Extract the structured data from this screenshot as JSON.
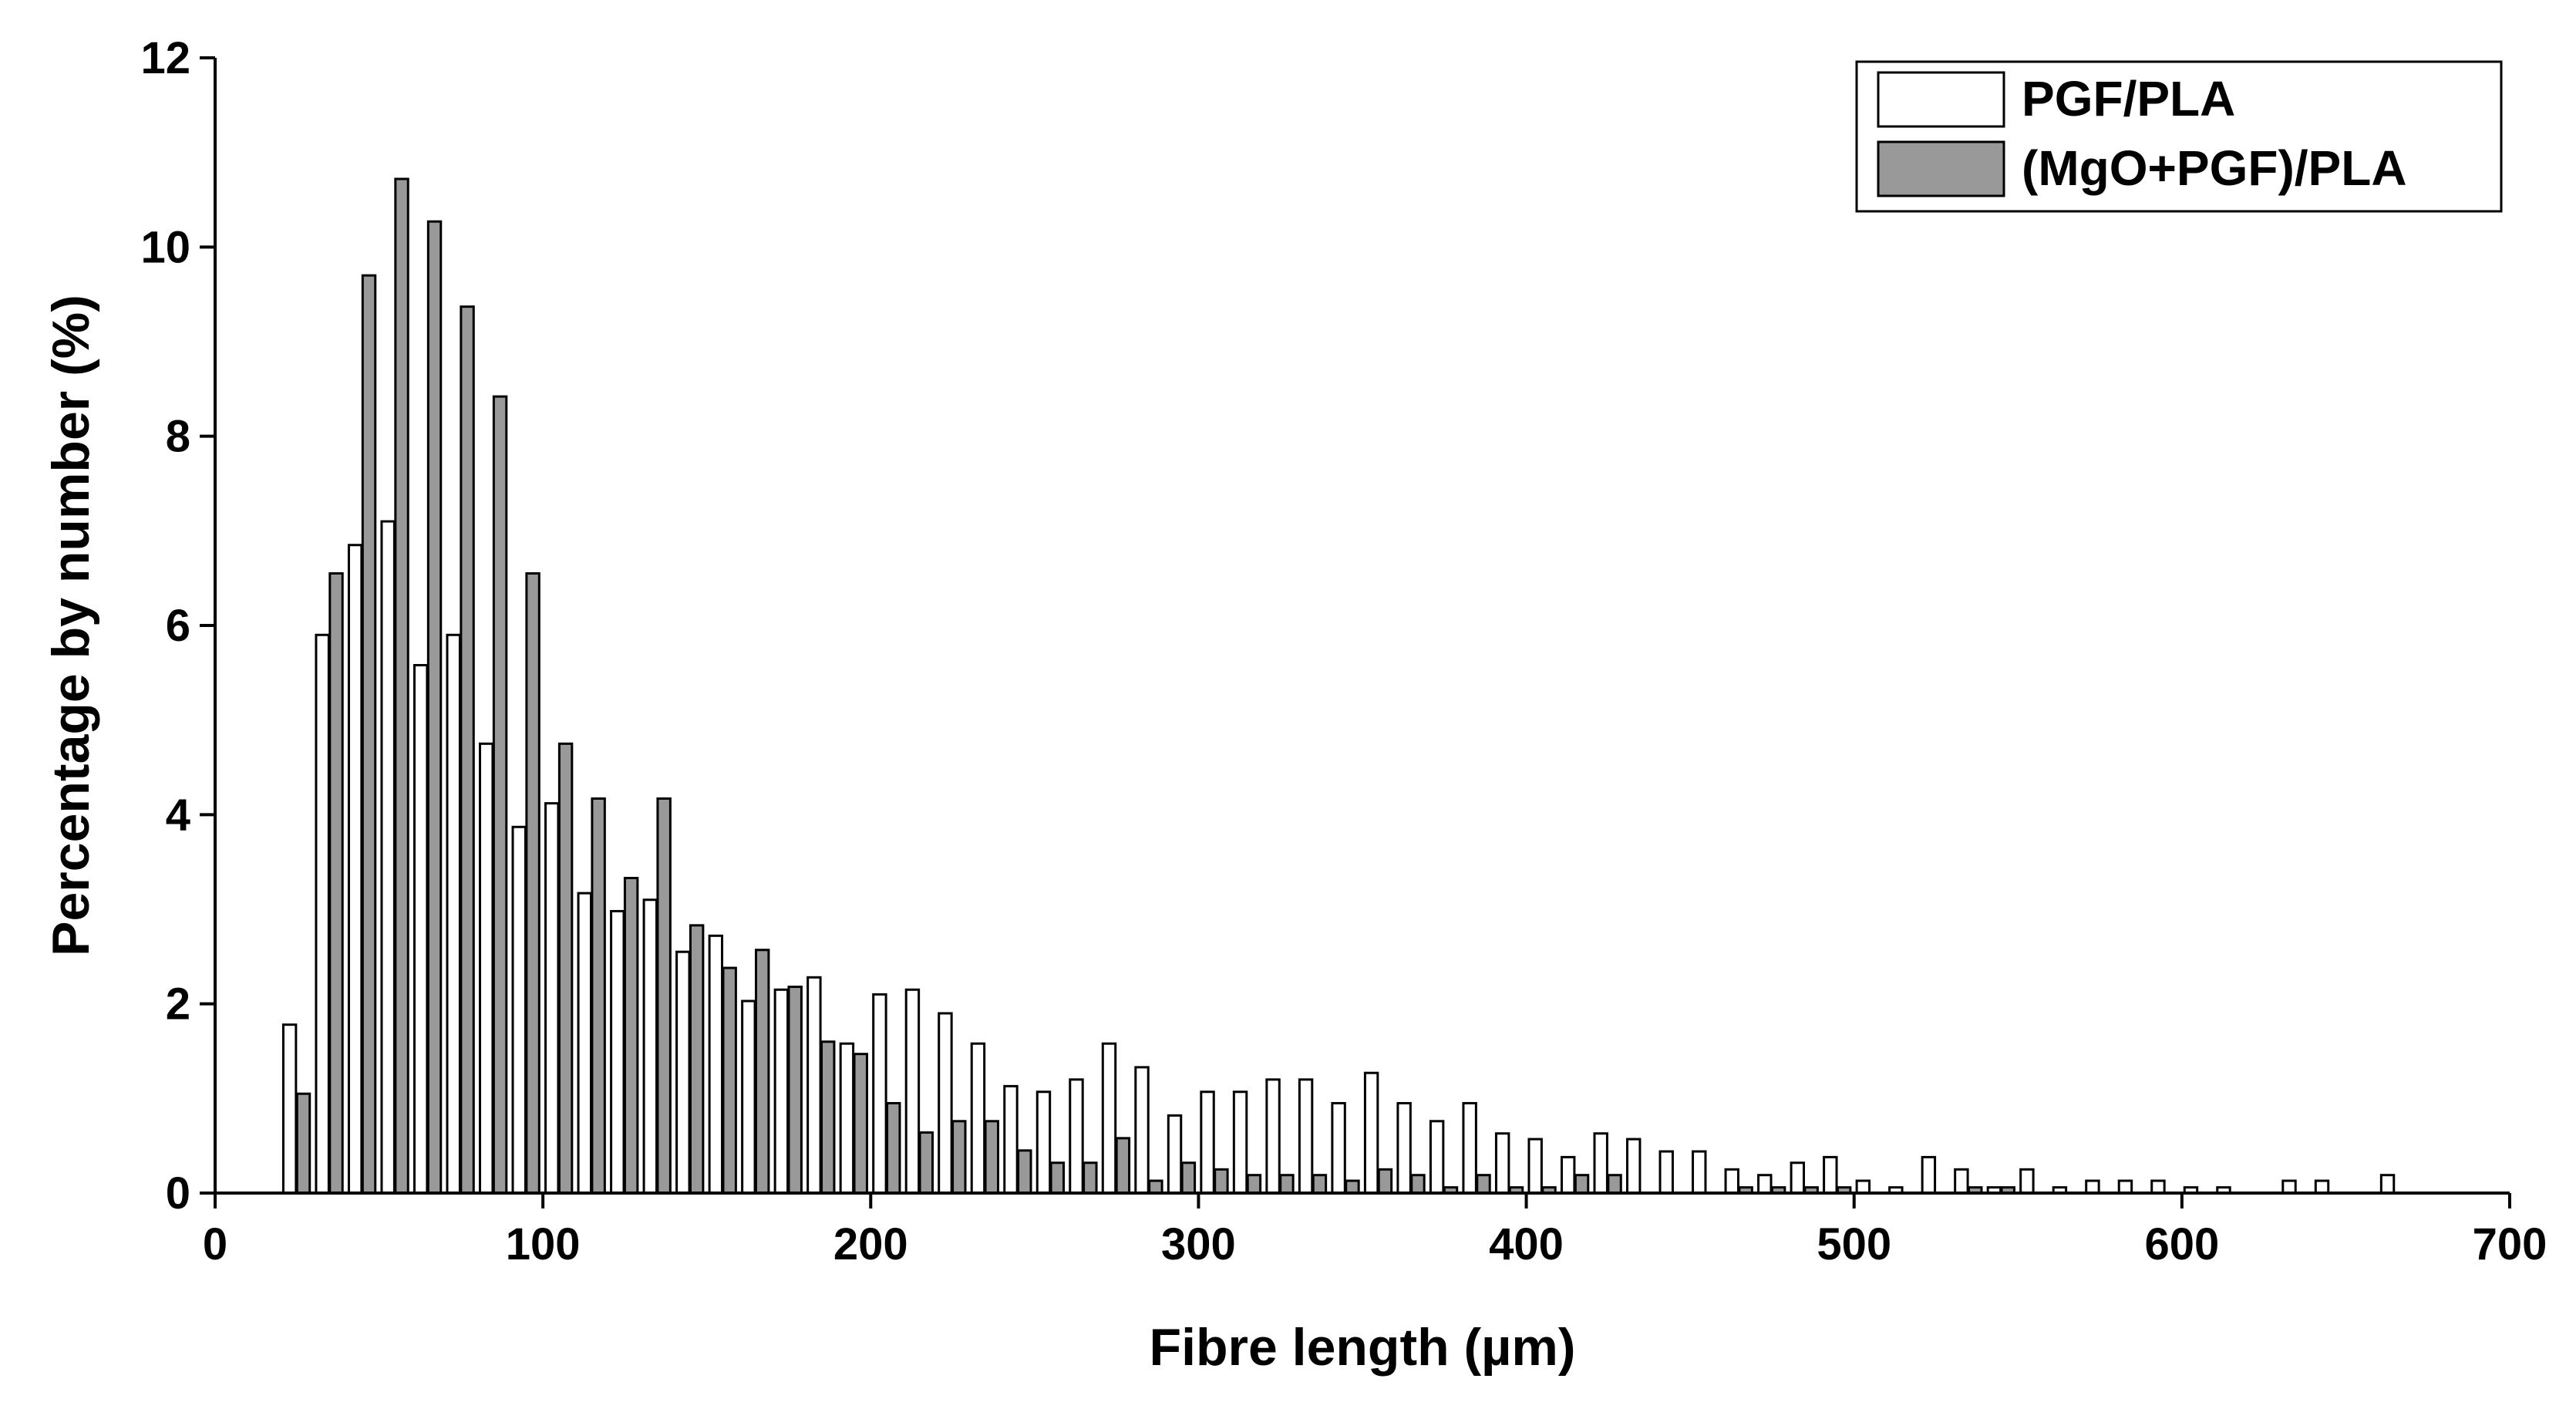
{
  "chart_data": {
    "type": "histogram",
    "x_label": "Fibre length (µm)",
    "y_label": "Percentage by number (%)",
    "bins": [
      20,
      30,
      40,
      50,
      60,
      70,
      80,
      90,
      100,
      110,
      120,
      130,
      140,
      150,
      160,
      170,
      180,
      190,
      200,
      210,
      220,
      230,
      240,
      250,
      260,
      270,
      280,
      290,
      300,
      310,
      320,
      330,
      340,
      350,
      360,
      370,
      380,
      390,
      400,
      410,
      420,
      430,
      440,
      450,
      460,
      470,
      480,
      490,
      500,
      510,
      520,
      530,
      540,
      550,
      560,
      570,
      580,
      590,
      600,
      610,
      620,
      630,
      640,
      650,
      660,
      670
    ],
    "series": [
      {
        "name": "PGF/PLA",
        "color": "#ffffff",
        "values": [
          1.78,
          5.9,
          6.85,
          7.1,
          5.58,
          5.9,
          4.75,
          3.87,
          4.12,
          3.17,
          2.98,
          3.1,
          2.55,
          2.72,
          2.03,
          2.15,
          2.28,
          1.58,
          2.1,
          2.15,
          1.9,
          1.58,
          1.13,
          1.07,
          1.2,
          1.58,
          1.33,
          0.82,
          1.07,
          1.07,
          1.2,
          1.2,
          0.95,
          1.27,
          0.95,
          0.76,
          0.95,
          0.63,
          0.57,
          0.38,
          0.63,
          0.57,
          0.44,
          0.44,
          0.25,
          0.19,
          0.32,
          0.38,
          0.13,
          0.06,
          0.38,
          0.25,
          0.06,
          0.25,
          0.06,
          0.13,
          0.13,
          0.13,
          0.06,
          0.06,
          0,
          0.13,
          0.13,
          0,
          0.19
        ]
      },
      {
        "name": "(MgO+PGF)/PLA",
        "color": "#999999",
        "values": [
          1.05,
          6.55,
          9.7,
          10.72,
          10.27,
          9.37,
          8.42,
          6.55,
          4.75,
          4.17,
          3.33,
          4.17,
          2.83,
          2.38,
          2.57,
          2.18,
          1.6,
          1.47,
          0.95,
          0.64,
          0.76,
          0.76,
          0.45,
          0.32,
          0.32,
          0.58,
          0.13,
          0.32,
          0.25,
          0.19,
          0.19,
          0.19,
          0.13,
          0.25,
          0.19,
          0.06,
          0.19,
          0.06,
          0.06,
          0.19,
          0.19,
          0,
          0,
          0,
          0.06,
          0.06,
          0.06,
          0.06,
          0,
          0,
          0,
          0.06,
          0.06,
          0,
          0,
          0,
          0,
          0,
          0,
          0,
          0,
          0,
          0,
          0,
          0
        ]
      }
    ],
    "xlim": [
      0,
      700
    ],
    "xticks": [
      0,
      100,
      200,
      300,
      400,
      500,
      600,
      700
    ],
    "ylim": [
      0,
      12
    ],
    "yticks": [
      0,
      2,
      4,
      6,
      8,
      10,
      12
    ],
    "legend": "upper right"
  }
}
